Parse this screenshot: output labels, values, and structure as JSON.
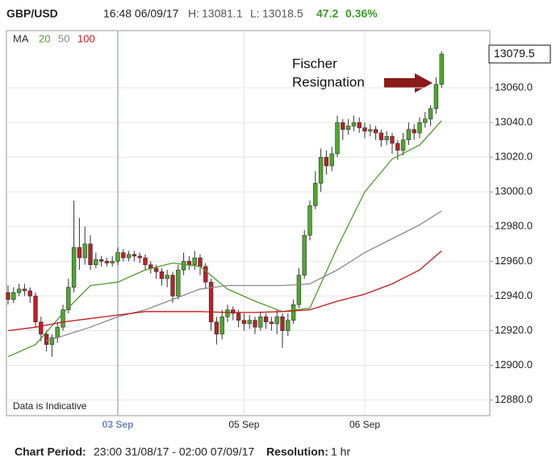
{
  "header": {
    "symbol": "GBP/USD",
    "time": "16:48 06/09/17",
    "high_label": "H:",
    "high": "13081.1",
    "low_label": "L:",
    "low": "13018.5",
    "change": "47.2",
    "change_pct": "0.36%"
  },
  "legend": {
    "title": "MA"
  },
  "footer": {
    "period_label": "Chart Period:",
    "period": "23:00 31/08/17 - 02:00 07/09/17",
    "resolution_label": "Resolution:",
    "resolution": "1 hr"
  },
  "chart_data": {
    "type": "candlestick",
    "annotation": [
      "Fischer",
      "Resignation"
    ],
    "note": "Data is Indicative",
    "up_color": "#4ea82e",
    "down_color": "#b8222a",
    "wick_color": "#333333",
    "categories": [
      null,
      null,
      null,
      null,
      null,
      null,
      null,
      null,
      null,
      null,
      null,
      null,
      null,
      null,
      null,
      null,
      null,
      null,
      null,
      null,
      "03 Sep",
      null,
      null,
      null,
      null,
      null,
      null,
      null,
      null,
      null,
      null,
      null,
      null,
      null,
      null,
      null,
      null,
      null,
      null,
      null,
      null,
      null,
      null,
      "05 Sep",
      null,
      null,
      null,
      null,
      null,
      null,
      null,
      null,
      null,
      null,
      null,
      null,
      null,
      null,
      null,
      null,
      null,
      null,
      null,
      null,
      null,
      "06 Sep",
      null,
      null,
      null,
      null,
      null,
      null,
      null,
      null,
      null,
      null,
      null,
      null,
      null,
      null
    ],
    "open": [
      12942,
      12938,
      12942,
      12944,
      12943,
      12940,
      12925,
      12918,
      12912,
      12916,
      12922,
      12932,
      12945,
      12968,
      12962,
      12970,
      12958,
      12961,
      12960,
      12959,
      12960,
      12965,
      12962,
      12964,
      12963,
      12962,
      12958,
      12956,
      12954,
      12950,
      12952,
      12940,
      12955,
      12960,
      12958,
      12962,
      12957,
      12948,
      12925,
      12918,
      12928,
      12932,
      12930,
      12926,
      12924,
      12926,
      12922,
      12928,
      12925,
      12924,
      12928,
      12920,
      12926,
      12935,
      12952,
      12975,
      12992,
      13005,
      13020,
      13015,
      13022,
      13040,
      13036,
      13038,
      13040,
      13037,
      13035,
      13036,
      13034,
      13030,
      13032,
      13028,
      13024,
      13030,
      13036,
      13034,
      13040,
      13042,
      13048,
      13062
    ],
    "high": [
      12946,
      12945,
      12947,
      12947,
      12945,
      12942,
      12928,
      12920,
      12918,
      12925,
      12935,
      12950,
      12995,
      12985,
      12980,
      12975,
      12965,
      12963,
      12962,
      12963,
      12968,
      12967,
      12966,
      12966,
      12965,
      12964,
      12960,
      12958,
      12956,
      12955,
      12954,
      12958,
      12965,
      12963,
      12966,
      12964,
      12959,
      12950,
      12928,
      12932,
      12935,
      12934,
      12932,
      12930,
      12929,
      12928,
      12931,
      12930,
      12928,
      12932,
      12930,
      12930,
      12938,
      12956,
      12978,
      12995,
      13012,
      13025,
      13024,
      13026,
      13044,
      13042,
      13042,
      13044,
      13043,
      13040,
      13039,
      13038,
      13036,
      13035,
      13034,
      13030,
      13034,
      13040,
      13039,
      13043,
      13046,
      13050,
      13066,
      13081.1
    ],
    "low": [
      12935,
      12936,
      12940,
      12940,
      12936,
      12922,
      12914,
      12908,
      12905,
      12913,
      12920,
      12930,
      12942,
      12955,
      12958,
      12955,
      12956,
      12957,
      12957,
      12957,
      12958,
      12960,
      12960,
      12960,
      12959,
      12955,
      12953,
      12950,
      12946,
      12945,
      12936,
      12938,
      12952,
      12955,
      12955,
      12952,
      12944,
      12920,
      12912,
      12915,
      12925,
      12926,
      12922,
      12920,
      12921,
      12918,
      12920,
      12921,
      12920,
      12918,
      12910,
      12917,
      12924,
      12933,
      12950,
      12972,
      12990,
      13000,
      13010,
      13012,
      13020,
      13030,
      13033,
      13035,
      13034,
      13031,
      13032,
      13030,
      13026,
      13027,
      13022,
      13018.5,
      13021,
      13027,
      13030,
      13031,
      13037,
      13038,
      13045,
      13060
    ],
    "close": [
      12938,
      12942,
      12944,
      12943,
      12940,
      12925,
      12918,
      12912,
      12916,
      12922,
      12932,
      12945,
      12968,
      12962,
      12970,
      12958,
      12961,
      12960,
      12959,
      12960,
      12965,
      12962,
      12964,
      12963,
      12962,
      12958,
      12956,
      12954,
      12950,
      12952,
      12940,
      12955,
      12960,
      12958,
      12962,
      12957,
      12948,
      12925,
      12918,
      12928,
      12932,
      12930,
      12926,
      12924,
      12926,
      12922,
      12928,
      12925,
      12924,
      12928,
      12920,
      12926,
      12935,
      12952,
      12975,
      12992,
      13005,
      13020,
      13015,
      13022,
      13040,
      13036,
      13038,
      13040,
      13037,
      13035,
      13036,
      13034,
      13030,
      13032,
      13028,
      13024,
      13030,
      13036,
      13034,
      13040,
      13042,
      13048,
      13062,
      13079.5
    ],
    "series": [
      {
        "name": "20",
        "color": "#4e9a2a",
        "x": [
          0,
          5,
          10,
          15,
          20,
          25,
          30,
          35,
          40,
          45,
          50,
          55,
          60,
          65,
          70,
          75,
          79
        ],
        "values": [
          12905,
          12912,
          12930,
          12946,
          12948,
          12955,
          12959,
          12957,
          12944,
          12937,
          12931,
          12933,
          12968,
          13000,
          13019,
          13027,
          13041
        ]
      },
      {
        "name": "50",
        "color": "#8a8a8a",
        "x": [
          7,
          10,
          15,
          20,
          25,
          30,
          35,
          40,
          45,
          50,
          55,
          60,
          65,
          70,
          75,
          79
        ],
        "values": [
          12914,
          12917,
          12922,
          12928,
          12932,
          12938,
          12944,
          12946,
          12946,
          12946,
          12947,
          12955,
          12965,
          12973,
          12981,
          12989
        ]
      },
      {
        "name": "100",
        "color": "#c4161c",
        "x": [
          0,
          5,
          10,
          15,
          20,
          25,
          30,
          35,
          40,
          45,
          50,
          55,
          60,
          65,
          70,
          75,
          79
        ],
        "values": [
          12920,
          12922,
          12925,
          12927,
          12929,
          12931,
          12931,
          12931,
          12930.5,
          12930.5,
          12931,
          12932,
          12937,
          12941,
          12947,
          12955,
          12966
        ]
      }
    ],
    "ylim": [
      12871,
      13093
    ],
    "yticks": [
      {
        "value": 12880,
        "label": "12880.0"
      },
      {
        "value": 12900,
        "label": "12900.0"
      },
      {
        "value": 12920,
        "label": "12920.0"
      },
      {
        "value": 12940,
        "label": "12940.0"
      },
      {
        "value": 12960,
        "label": "12960.0"
      },
      {
        "value": 12980,
        "label": "12980.0"
      },
      {
        "value": 13000,
        "label": "13000.0"
      },
      {
        "value": 13020,
        "label": "13020.0"
      },
      {
        "value": 13040,
        "label": "13040.0"
      },
      {
        "value": 13060,
        "label": "13060.0"
      }
    ],
    "grid": true
  }
}
